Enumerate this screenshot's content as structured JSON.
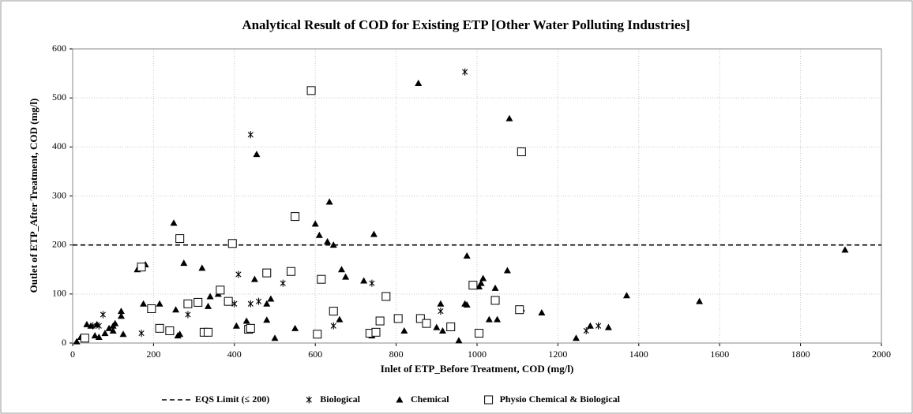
{
  "chart_data": {
    "type": "scatter",
    "title": "Analytical Result of COD for Existing ETP [Other Water Polluting Industries]",
    "x_label": "Inlet of ETP_Before Treatment, COD (mg/l)",
    "y_label": "Outlet of ETP_After Treatment, COD (mg/l)",
    "xlim": [
      0,
      2000
    ],
    "xticks": [
      0,
      200,
      400,
      600,
      800,
      1000,
      1200,
      1400,
      1600,
      1800,
      2000
    ],
    "ylim": [
      0,
      600
    ],
    "yticks": [
      0,
      100,
      200,
      300,
      400,
      500,
      600
    ],
    "grid": true,
    "legend": "bottom",
    "reference_line": {
      "name": "EQS Limit (≤ 200)",
      "value": 200,
      "color": "#000000"
    },
    "series": [
      {
        "name": "Biological",
        "marker": "asterisk",
        "color": "#000000",
        "x": [
          50,
          65,
          75,
          170,
          285,
          400,
          410,
          440,
          440,
          460,
          520,
          645,
          740,
          910,
          970,
          1270,
          1300
        ],
        "values": [
          35,
          35,
          58,
          20,
          58,
          80,
          140,
          425,
          80,
          85,
          122,
          35,
          122,
          65,
          553,
          25,
          35
        ]
      },
      {
        "name": "Chemical",
        "marker": "triangle",
        "color": "#000000",
        "x": [
          10,
          20,
          35,
          45,
          55,
          60,
          65,
          80,
          90,
          100,
          100,
          105,
          120,
          120,
          125,
          160,
          175,
          180,
          215,
          250,
          255,
          260,
          265,
          275,
          320,
          335,
          340,
          360,
          405,
          430,
          450,
          455,
          480,
          480,
          490,
          500,
          550,
          600,
          610,
          630,
          635,
          645,
          660,
          665,
          675,
          720,
          740,
          745,
          820,
          855,
          900,
          910,
          915,
          955,
          970,
          975,
          975,
          1005,
          1010,
          1015,
          1030,
          1045,
          1050,
          1075,
          1080,
          1110,
          1160,
          1245,
          1280,
          1325,
          1370,
          1550,
          1910
        ],
        "values": [
          3,
          12,
          38,
          35,
          15,
          38,
          12,
          20,
          30,
          25,
          35,
          40,
          65,
          55,
          18,
          150,
          80,
          160,
          80,
          245,
          68,
          15,
          18,
          163,
          153,
          75,
          95,
          100,
          35,
          45,
          130,
          385,
          47,
          80,
          90,
          10,
          30,
          243,
          220,
          207,
          288,
          200,
          48,
          150,
          135,
          127,
          15,
          222,
          25,
          530,
          32,
          80,
          25,
          5,
          80,
          178,
          78,
          115,
          122,
          132,
          48,
          112,
          48,
          148,
          458,
          70,
          62,
          10,
          35,
          32,
          97,
          85,
          190
        ]
      },
      {
        "name": "Physio Chemical & Biological",
        "marker": "square",
        "color": "#000000",
        "x": [
          30,
          170,
          195,
          215,
          240,
          265,
          285,
          310,
          325,
          335,
          365,
          385,
          395,
          435,
          440,
          480,
          540,
          550,
          590,
          605,
          615,
          645,
          735,
          750,
          760,
          775,
          805,
          860,
          875,
          935,
          990,
          1005,
          1045,
          1110,
          1105
        ],
        "values": [
          10,
          155,
          70,
          30,
          25,
          213,
          80,
          83,
          22,
          22,
          108,
          85,
          203,
          28,
          30,
          143,
          146,
          258,
          515,
          18,
          130,
          65,
          20,
          22,
          45,
          95,
          50,
          50,
          40,
          33,
          118,
          20,
          87,
          390,
          68
        ]
      }
    ]
  }
}
